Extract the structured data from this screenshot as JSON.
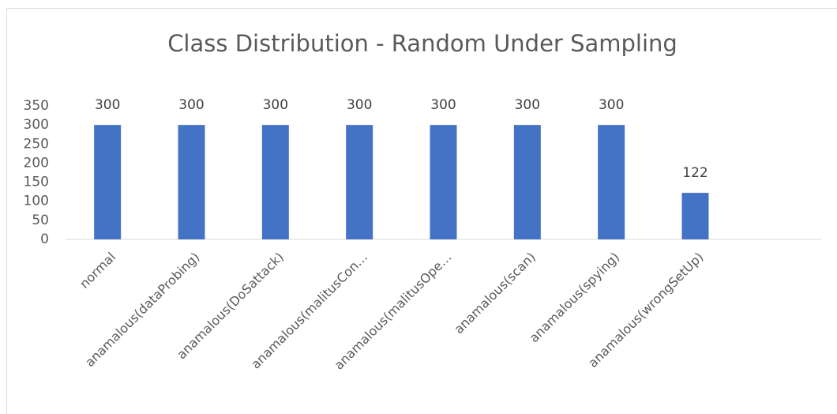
{
  "chart_data": {
    "type": "bar",
    "title": "Class Distribution - Random Under Sampling",
    "categories": [
      "normal",
      "anamalous(dataProbing)",
      "anamalous(DoSattack)",
      "anamalous(malitusCon…",
      "anamalous(malitusOpe…",
      "anamalous(scan)",
      "anamalous(spying)",
      "anamalous(wrongSetUp)",
      null
    ],
    "values": [
      300,
      300,
      300,
      300,
      300,
      300,
      300,
      122,
      null
    ],
    "color": "#4472c4",
    "ylim": [
      0,
      350
    ],
    "yticks": [
      0,
      50,
      100,
      150,
      200,
      250,
      300,
      350
    ],
    "grid": false
  }
}
